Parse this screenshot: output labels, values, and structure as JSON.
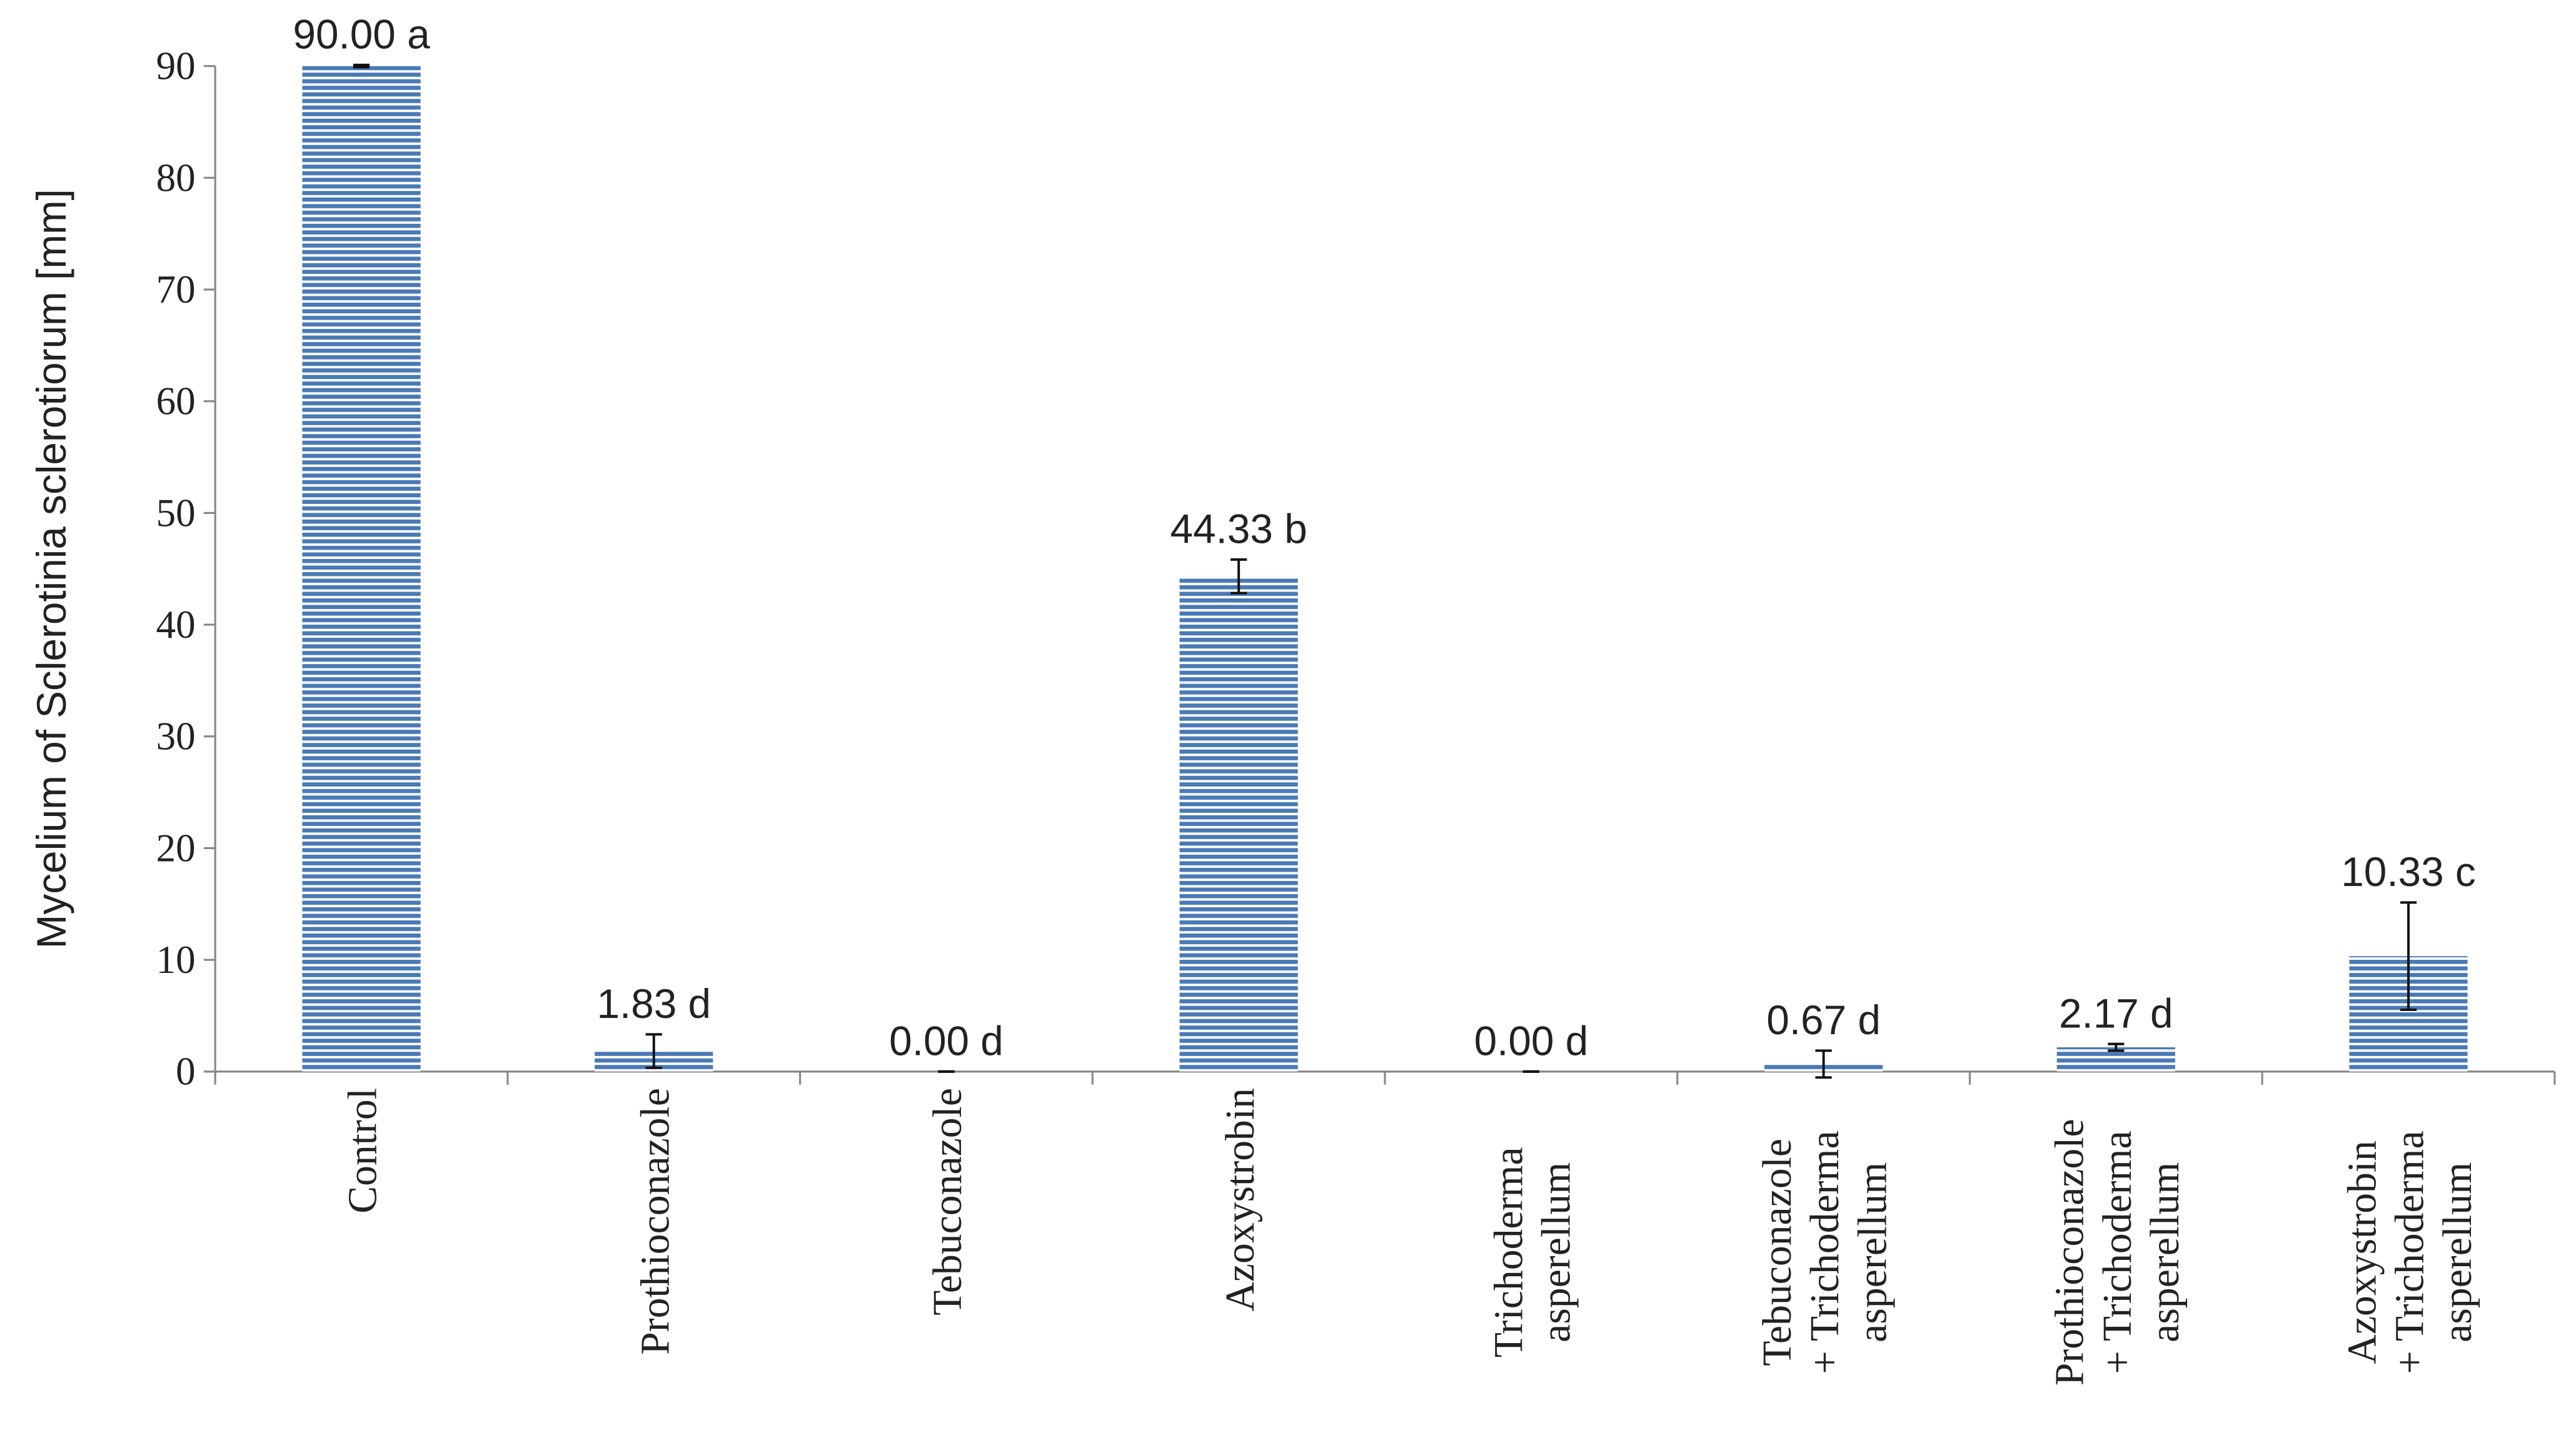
{
  "chart_data": {
    "type": "bar",
    "ylabel": "Mycelium of Sclerotinia sclerotiorum [mm]",
    "categories": [
      [
        "Control"
      ],
      [
        "Prothioconazole"
      ],
      [
        "Tebuconazole"
      ],
      [
        "Azoxystrobin"
      ],
      [
        "Trichoderma",
        "asperellum"
      ],
      [
        "Tebuconazole",
        "+ Trichoderma",
        "asperellum"
      ],
      [
        "Prothioconazole",
        "+ Trichoderma",
        "asperellum"
      ],
      [
        "Azoxystrobin",
        "+ Trichoderma",
        "asperellum"
      ]
    ],
    "values": [
      90,
      1.83,
      0,
      44.33,
      0,
      0.67,
      2.17,
      10.33
    ],
    "value_labels": [
      "90.00 a",
      "1.83 d",
      "0.00 d",
      "44.33 b",
      "0.00 d",
      "0.67 d",
      "2.17 d",
      "10.33 c"
    ],
    "errors": [
      0.1,
      1.5,
      0,
      1.5,
      0,
      1.2,
      0.3,
      4.8
    ],
    "color": "#4a7ab5",
    "ylim": [
      0,
      90
    ],
    "yticks": [
      0,
      10,
      20,
      30,
      40,
      50,
      60,
      70,
      80,
      90
    ]
  }
}
